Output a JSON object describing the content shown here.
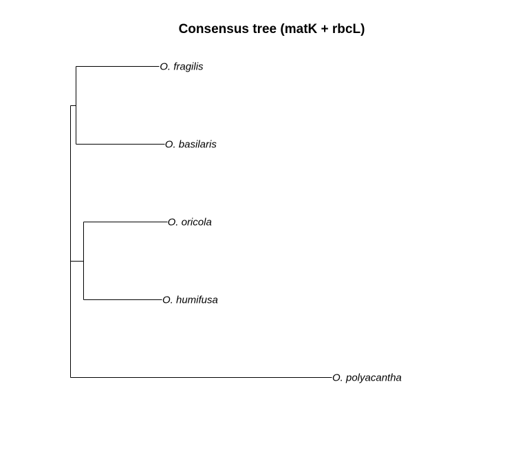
{
  "title": "Consensus tree (matK + rbcL)",
  "tree": {
    "tips": [
      {
        "id": "fragilis",
        "label": "O. fragilis",
        "branch_length": 0.16
      },
      {
        "id": "basilaris",
        "label": "O. basilaris",
        "branch_length": 0.17
      },
      {
        "id": "oricola",
        "label": "O. oricola",
        "branch_length": 0.16
      },
      {
        "id": "humifusa",
        "label": "O. humifusa",
        "branch_length": 0.15
      },
      {
        "id": "polyacantha",
        "label": "O. polyacantha",
        "branch_length": 0.5
      }
    ],
    "clades": [
      {
        "id": "clade-fragilis-basilaris",
        "children": [
          "fragilis",
          "basilaris"
        ],
        "branch_length": 0.01
      },
      {
        "id": "clade-oricola-humifusa",
        "children": [
          "oricola",
          "humifusa"
        ],
        "branch_length": 0.025
      },
      {
        "id": "clade-ingroup",
        "children": [
          "clade-fragilis-basilaris",
          "clade-oricola-humifusa"
        ],
        "branch_length": 0.0
      },
      {
        "id": "root",
        "children": [
          "clade-ingroup",
          "polyacantha"
        ],
        "branch_length": 0.0
      }
    ]
  }
}
